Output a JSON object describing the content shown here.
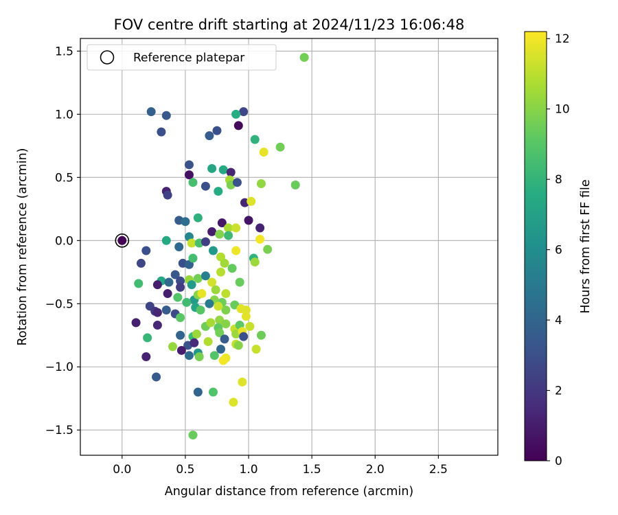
{
  "chart_data": {
    "type": "scatter",
    "title": "FOV centre drift starting at 2024/11/23 16:06:48",
    "xlabel": "Angular distance from reference (arcmin)",
    "ylabel": "Rotation from reference (arcmin)",
    "xlim": [
      -0.33,
      2.97
    ],
    "ylim": [
      -1.7,
      1.6
    ],
    "xticks": [
      0.0,
      0.5,
      1.0,
      1.5,
      2.0,
      2.5
    ],
    "xtick_labels": [
      "0.0",
      "0.5",
      "1.0",
      "1.5",
      "2.0",
      "2.5"
    ],
    "yticks": [
      -1.5,
      -1.0,
      -0.5,
      0.0,
      0.5,
      1.0,
      1.5
    ],
    "ytick_labels": [
      "−1.5",
      "−1.0",
      "−0.5",
      "0.0",
      "0.5",
      "1.0",
      "1.5"
    ],
    "grid": true,
    "legend": {
      "placement": "top-left",
      "entries": [
        "Reference platepar"
      ]
    },
    "colorbar": {
      "label": "Hours from first FF file",
      "colormap": "viridis",
      "range": [
        0,
        12.2
      ],
      "ticks": [
        0,
        2,
        4,
        6,
        8,
        10,
        12
      ],
      "tick_labels": [
        "0",
        "2",
        "4",
        "6",
        "8",
        "10",
        "12"
      ]
    },
    "reference_point": {
      "name": "Reference platepar",
      "x": 0.0,
      "y": 0.0,
      "hours": 0
    },
    "series": [
      {
        "points": [
          [
            0.0,
            0.0,
            0.0
          ],
          [
            0.23,
            1.02,
            3.8
          ],
          [
            0.35,
            0.99,
            3.4
          ],
          [
            0.31,
            0.86,
            3.0
          ],
          [
            0.69,
            0.83,
            3.6
          ],
          [
            0.75,
            0.87,
            3.0
          ],
          [
            0.92,
            0.91,
            0.3
          ],
          [
            0.96,
            1.02,
            2.6
          ],
          [
            0.9,
            1.0,
            7.6
          ],
          [
            1.44,
            1.45,
            9.6
          ],
          [
            1.05,
            0.8,
            7.9
          ],
          [
            1.25,
            0.74,
            9.6
          ],
          [
            1.12,
            0.7,
            11.8
          ],
          [
            0.53,
            0.6,
            3.2
          ],
          [
            0.71,
            0.57,
            7.2
          ],
          [
            0.8,
            0.56,
            7.4
          ],
          [
            0.86,
            0.54,
            1.3
          ],
          [
            0.53,
            0.52,
            0.6
          ],
          [
            0.56,
            0.46,
            8.6
          ],
          [
            0.66,
            0.43,
            3.0
          ],
          [
            0.85,
            0.48,
            10.6
          ],
          [
            0.86,
            0.44,
            9.8
          ],
          [
            0.91,
            0.46,
            3.2
          ],
          [
            0.76,
            0.39,
            7.5
          ],
          [
            1.1,
            0.45,
            10.2
          ],
          [
            1.37,
            0.44,
            9.4
          ],
          [
            0.35,
            0.39,
            1.2
          ],
          [
            0.36,
            0.36,
            2.4
          ],
          [
            0.97,
            0.3,
            1.3
          ],
          [
            1.02,
            0.31,
            11.6
          ],
          [
            0.45,
            0.16,
            3.6
          ],
          [
            0.5,
            0.15,
            4.4
          ],
          [
            0.6,
            0.18,
            7.8
          ],
          [
            0.79,
            0.14,
            0.8
          ],
          [
            0.71,
            0.07,
            1.0
          ],
          [
            0.84,
            0.1,
            10.7
          ],
          [
            0.9,
            0.1,
            11.3
          ],
          [
            0.84,
            0.04,
            8.3
          ],
          [
            1.0,
            0.16,
            0.7
          ],
          [
            1.09,
            0.1,
            1.2
          ],
          [
            0.35,
            0.0,
            7.4
          ],
          [
            0.53,
            0.03,
            5.6
          ],
          [
            0.55,
            -0.02,
            11.2
          ],
          [
            0.61,
            -0.02,
            8.6
          ],
          [
            0.66,
            -0.01,
            2.3
          ],
          [
            0.77,
            0.05,
            9.9
          ],
          [
            0.19,
            -0.08,
            3.0
          ],
          [
            0.45,
            -0.05,
            4.2
          ],
          [
            0.72,
            -0.08,
            6.6
          ],
          [
            0.9,
            -0.08,
            11.9
          ],
          [
            1.09,
            0.01,
            12.0
          ],
          [
            1.15,
            -0.07,
            9.7
          ],
          [
            0.15,
            -0.18,
            2.6
          ],
          [
            0.48,
            -0.18,
            3.0
          ],
          [
            0.53,
            -0.19,
            3.8
          ],
          [
            0.56,
            -0.14,
            8.5
          ],
          [
            0.78,
            -0.13,
            10.8
          ],
          [
            1.04,
            -0.14,
            7.9
          ],
          [
            1.05,
            -0.17,
            10.4
          ],
          [
            0.13,
            -0.34,
            8.4
          ],
          [
            0.31,
            -0.32,
            7.2
          ],
          [
            0.28,
            -0.35,
            1.0
          ],
          [
            0.37,
            -0.33,
            4.2
          ],
          [
            0.42,
            -0.27,
            3.4
          ],
          [
            0.46,
            -0.32,
            2.8
          ],
          [
            0.46,
            -0.37,
            2.2
          ],
          [
            0.53,
            -0.31,
            10.3
          ],
          [
            0.55,
            -0.35,
            6.6
          ],
          [
            0.6,
            -0.3,
            9.6
          ],
          [
            0.66,
            -0.28,
            5.2
          ],
          [
            0.71,
            -0.33,
            11.4
          ],
          [
            0.74,
            -0.39,
            10.4
          ],
          [
            0.78,
            -0.25,
            10.9
          ],
          [
            0.81,
            -0.18,
            10.5
          ],
          [
            0.87,
            -0.22,
            9.3
          ],
          [
            0.93,
            -0.33,
            9.4
          ],
          [
            0.82,
            -0.42,
            11.0
          ],
          [
            0.36,
            -0.42,
            1.1
          ],
          [
            0.44,
            -0.45,
            8.9
          ],
          [
            0.57,
            -0.47,
            6.7
          ],
          [
            0.6,
            -0.43,
            10.0
          ],
          [
            0.63,
            -0.42,
            11.8
          ],
          [
            0.73,
            -0.47,
            10.0
          ],
          [
            0.79,
            -0.49,
            9.5
          ],
          [
            0.82,
            -0.55,
            9.8
          ],
          [
            0.89,
            -0.51,
            9.4
          ],
          [
            0.94,
            -0.54,
            11.7
          ],
          [
            0.98,
            -0.55,
            11.6
          ],
          [
            0.98,
            -0.6,
            11.7
          ],
          [
            0.22,
            -0.52,
            2.5
          ],
          [
            0.26,
            -0.56,
            2.1
          ],
          [
            0.28,
            -0.57,
            1.3
          ],
          [
            0.35,
            -0.55,
            3.6
          ],
          [
            0.42,
            -0.58,
            2.8
          ],
          [
            0.51,
            -0.49,
            8.4
          ],
          [
            0.58,
            -0.53,
            7.2
          ],
          [
            0.62,
            -0.55,
            9.0
          ],
          [
            0.69,
            -0.5,
            5.0
          ],
          [
            0.76,
            -0.52,
            11.3
          ],
          [
            0.77,
            -0.63,
            10.2
          ],
          [
            0.46,
            -0.61,
            9.1
          ],
          [
            0.11,
            -0.65,
            1.1
          ],
          [
            0.28,
            -0.67,
            1.4
          ],
          [
            0.66,
            -0.68,
            9.5
          ],
          [
            0.7,
            -0.65,
            10.6
          ],
          [
            0.76,
            -0.69,
            9.2
          ],
          [
            0.82,
            -0.66,
            10.0
          ],
          [
            0.89,
            -0.7,
            11.2
          ],
          [
            0.93,
            -0.67,
            9.2
          ],
          [
            1.01,
            -0.68,
            11.2
          ],
          [
            0.9,
            -0.74,
            10.4
          ],
          [
            0.95,
            -0.72,
            11.8
          ],
          [
            0.46,
            -0.75,
            3.9
          ],
          [
            0.56,
            -0.76,
            8.3
          ],
          [
            0.59,
            -0.74,
            10.4
          ],
          [
            0.77,
            -0.73,
            9.6
          ],
          [
            0.96,
            -0.76,
            3.0
          ],
          [
            1.1,
            -0.75,
            9.5
          ],
          [
            0.2,
            -0.77,
            8.1
          ],
          [
            0.4,
            -0.84,
            10.3
          ],
          [
            0.52,
            -0.83,
            3.2
          ],
          [
            0.57,
            -0.81,
            1.5
          ],
          [
            0.68,
            -0.8,
            10.8
          ],
          [
            0.81,
            -0.78,
            3.6
          ],
          [
            0.9,
            -0.82,
            11.1
          ],
          [
            0.92,
            -0.83,
            10.0
          ],
          [
            1.06,
            -0.86,
            11.2
          ],
          [
            0.47,
            -0.87,
            1.0
          ],
          [
            0.53,
            -0.91,
            4.3
          ],
          [
            0.6,
            -0.89,
            6.4
          ],
          [
            0.61,
            -0.92,
            9.7
          ],
          [
            0.73,
            -0.91,
            8.9
          ],
          [
            0.78,
            -0.86,
            4.1
          ],
          [
            0.82,
            -0.93,
            11.9
          ],
          [
            0.8,
            -0.95,
            12.0
          ],
          [
            0.19,
            -0.92,
            1.2
          ],
          [
            0.27,
            -1.08,
            3.5
          ],
          [
            0.95,
            -1.12,
            11.6
          ],
          [
            0.6,
            -1.2,
            4.0
          ],
          [
            0.72,
            -1.2,
            8.8
          ],
          [
            0.88,
            -1.28,
            11.6
          ],
          [
            0.56,
            -1.54,
            9.4
          ]
        ]
      }
    ]
  }
}
